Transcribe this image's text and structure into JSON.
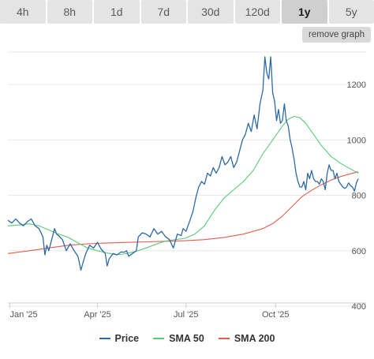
{
  "tabs": [
    {
      "label": "4h",
      "active": false
    },
    {
      "label": "8h",
      "active": false
    },
    {
      "label": "1d",
      "active": false
    },
    {
      "label": "7d",
      "active": false
    },
    {
      "label": "30d",
      "active": false
    },
    {
      "label": "120d",
      "active": false
    },
    {
      "label": "1y",
      "active": true
    },
    {
      "label": "5y",
      "active": false
    }
  ],
  "remove_graph_label": "remove graph",
  "colors": {
    "price": "#2d6aa3",
    "sma50": "#5cc97a",
    "sma200": "#e55c4e",
    "grid": "#e9e9e9"
  },
  "chart_data": {
    "type": "line",
    "title": "",
    "xlabel": "",
    "ylabel": "",
    "ylim": [
      400,
      1300
    ],
    "grid": true,
    "y_ticks": [
      400,
      600,
      800,
      1000,
      1200
    ],
    "x_ticks": [
      {
        "label": "Jan '25",
        "day": 0
      },
      {
        "label": "Apr '25",
        "day": 90
      },
      {
        "label": "Jul '25",
        "day": 181
      },
      {
        "label": "Oct '25",
        "day": 273
      }
    ],
    "x_domain": [
      -2,
      366
    ],
    "legend_position": "bottom-center",
    "series": [
      {
        "name": "Price",
        "color": "#2d6aa3",
        "points": [
          [
            -2,
            710
          ],
          [
            2,
            700
          ],
          [
            6,
            715
          ],
          [
            10,
            700
          ],
          [
            14,
            690
          ],
          [
            18,
            705
          ],
          [
            22,
            715
          ],
          [
            26,
            690
          ],
          [
            30,
            680
          ],
          [
            34,
            650
          ],
          [
            36,
            585
          ],
          [
            38,
            620
          ],
          [
            40,
            600
          ],
          [
            43,
            640
          ],
          [
            46,
            680
          ],
          [
            48,
            660
          ],
          [
            50,
            655
          ],
          [
            54,
            640
          ],
          [
            58,
            600
          ],
          [
            62,
            625
          ],
          [
            66,
            600
          ],
          [
            70,
            580
          ],
          [
            73,
            530
          ],
          [
            75,
            555
          ],
          [
            78,
            590
          ],
          [
            82,
            620
          ],
          [
            86,
            610
          ],
          [
            90,
            630
          ],
          [
            94,
            605
          ],
          [
            98,
            590
          ],
          [
            100,
            545
          ],
          [
            102,
            570
          ],
          [
            106,
            590
          ],
          [
            110,
            585
          ],
          [
            114,
            595
          ],
          [
            118,
            595
          ],
          [
            120,
            600
          ],
          [
            122,
            580
          ],
          [
            126,
            590
          ],
          [
            130,
            600
          ],
          [
            132,
            650
          ],
          [
            136,
            665
          ],
          [
            140,
            660
          ],
          [
            144,
            650
          ],
          [
            148,
            680
          ],
          [
            152,
            660
          ],
          [
            156,
            670
          ],
          [
            160,
            650
          ],
          [
            164,
            640
          ],
          [
            168,
            610
          ],
          [
            172,
            660
          ],
          [
            176,
            655
          ],
          [
            178,
            680
          ],
          [
            181,
            670
          ],
          [
            184,
            700
          ],
          [
            188,
            740
          ],
          [
            191,
            790
          ],
          [
            194,
            830
          ],
          [
            197,
            850
          ],
          [
            200,
            840
          ],
          [
            203,
            880
          ],
          [
            206,
            870
          ],
          [
            209,
            900
          ],
          [
            212,
            880
          ],
          [
            215,
            900
          ],
          [
            218,
            940
          ],
          [
            221,
            910
          ],
          [
            224,
            920
          ],
          [
            227,
            940
          ],
          [
            230,
            900
          ],
          [
            233,
            920
          ],
          [
            236,
            960
          ],
          [
            239,
            1000
          ],
          [
            242,
            1020
          ],
          [
            245,
            1060
          ],
          [
            248,
            1030
          ],
          [
            251,
            1090
          ],
          [
            254,
            1040
          ],
          [
            257,
            1130
          ],
          [
            260,
            1180
          ],
          [
            262,
            1300
          ],
          [
            264,
            1240
          ],
          [
            266,
            1220
          ],
          [
            268,
            1300
          ],
          [
            270,
            1170
          ],
          [
            272,
            1140
          ],
          [
            274,
            1070
          ],
          [
            276,
            1110
          ],
          [
            278,
            1060
          ],
          [
            280,
            1070
          ],
          [
            282,
            1130
          ],
          [
            284,
            1070
          ],
          [
            286,
            1050
          ],
          [
            288,
            1000
          ],
          [
            290,
            970
          ],
          [
            292,
            930
          ],
          [
            294,
            880
          ],
          [
            296,
            850
          ],
          [
            298,
            830
          ],
          [
            300,
            830
          ],
          [
            302,
            850
          ],
          [
            304,
            820
          ],
          [
            306,
            880
          ],
          [
            308,
            860
          ],
          [
            310,
            890
          ],
          [
            312,
            860
          ],
          [
            314,
            850
          ],
          [
            316,
            850
          ],
          [
            318,
            840
          ],
          [
            320,
            860
          ],
          [
            322,
            850
          ],
          [
            324,
            820
          ],
          [
            326,
            880
          ],
          [
            328,
            910
          ],
          [
            330,
            890
          ],
          [
            332,
            890
          ],
          [
            334,
            860
          ],
          [
            336,
            880
          ],
          [
            338,
            850
          ],
          [
            340,
            840
          ],
          [
            342,
            830
          ],
          [
            344,
            825
          ],
          [
            346,
            830
          ],
          [
            348,
            845
          ],
          [
            350,
            835
          ],
          [
            352,
            830
          ],
          [
            354,
            815
          ],
          [
            356,
            845
          ],
          [
            358,
            860
          ]
        ]
      },
      {
        "name": "SMA 50",
        "color": "#5cc97a",
        "points": [
          [
            -2,
            690
          ],
          [
            10,
            693
          ],
          [
            20,
            697
          ],
          [
            30,
            690
          ],
          [
            40,
            675
          ],
          [
            50,
            660
          ],
          [
            60,
            648
          ],
          [
            70,
            628
          ],
          [
            80,
            610
          ],
          [
            90,
            600
          ],
          [
            100,
            592
          ],
          [
            110,
            585
          ],
          [
            120,
            590
          ],
          [
            130,
            598
          ],
          [
            140,
            610
          ],
          [
            150,
            623
          ],
          [
            160,
            635
          ],
          [
            170,
            640
          ],
          [
            180,
            645
          ],
          [
            190,
            660
          ],
          [
            200,
            690
          ],
          [
            210,
            745
          ],
          [
            220,
            790
          ],
          [
            230,
            820
          ],
          [
            240,
            850
          ],
          [
            250,
            890
          ],
          [
            260,
            950
          ],
          [
            270,
            1000
          ],
          [
            280,
            1050
          ],
          [
            286,
            1075
          ],
          [
            292,
            1085
          ],
          [
            298,
            1080
          ],
          [
            304,
            1060
          ],
          [
            312,
            1020
          ],
          [
            320,
            980
          ],
          [
            330,
            940
          ],
          [
            340,
            915
          ],
          [
            350,
            895
          ],
          [
            358,
            880
          ]
        ]
      },
      {
        "name": "SMA 200",
        "color": "#e55c4e",
        "points": [
          [
            -2,
            590
          ],
          [
            20,
            600
          ],
          [
            40,
            610
          ],
          [
            60,
            620
          ],
          [
            80,
            625
          ],
          [
            100,
            628
          ],
          [
            120,
            630
          ],
          [
            140,
            632
          ],
          [
            160,
            634
          ],
          [
            180,
            636
          ],
          [
            200,
            640
          ],
          [
            220,
            648
          ],
          [
            240,
            660
          ],
          [
            260,
            680
          ],
          [
            270,
            698
          ],
          [
            280,
            725
          ],
          [
            290,
            760
          ],
          [
            300,
            795
          ],
          [
            310,
            818
          ],
          [
            320,
            838
          ],
          [
            330,
            855
          ],
          [
            340,
            868
          ],
          [
            350,
            878
          ],
          [
            358,
            885
          ]
        ]
      }
    ]
  }
}
